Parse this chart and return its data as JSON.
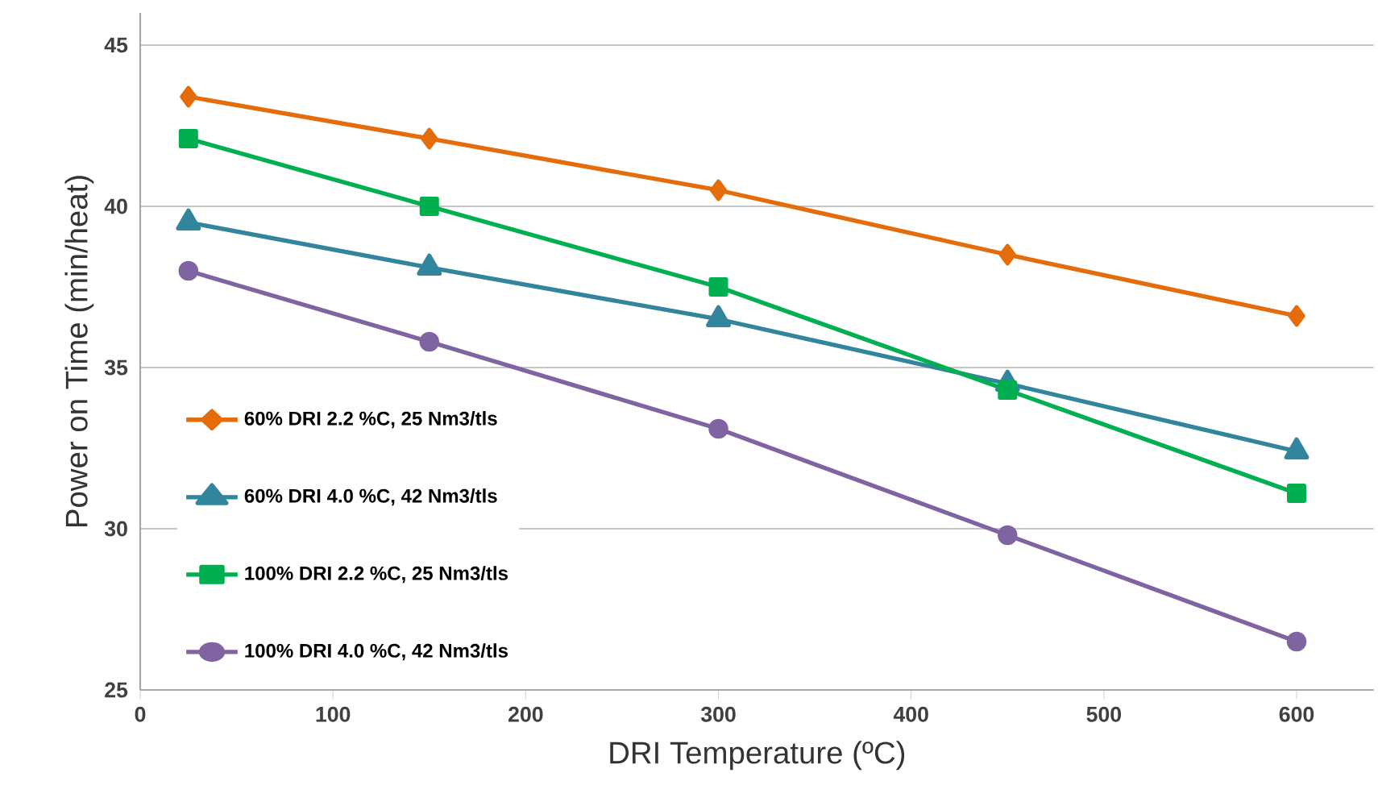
{
  "chart_data": {
    "type": "line",
    "xlabel": "DRI Temperature (ºC)",
    "ylabel": "Power on Time (min/heat)",
    "x": [
      25,
      150,
      300,
      450,
      600
    ],
    "xlim": [
      0,
      640
    ],
    "ylim": [
      25,
      46
    ],
    "xticks": [
      0,
      100,
      200,
      300,
      400,
      500,
      600
    ],
    "yticks": [
      25,
      30,
      35,
      40,
      45
    ],
    "grid": "y",
    "legend": "left",
    "line_style": "solid",
    "series": [
      {
        "name": "60% DRI 2.2 %C, 25 Nm3/tls",
        "color": "#e46c0a",
        "marker": "diamond",
        "values": [
          43.4,
          42.1,
          40.5,
          38.5,
          36.6
        ]
      },
      {
        "name": "60% DRI 4.0 %C, 42 Nm3/tls",
        "color": "#31859c",
        "marker": "triangle",
        "values": [
          39.5,
          38.1,
          36.5,
          34.5,
          32.4
        ]
      },
      {
        "name": "100% DRI 2.2 %C, 25 Nm3/tls",
        "color": "#00b050",
        "marker": "square",
        "values": [
          42.1,
          40.0,
          37.5,
          34.3,
          31.1
        ]
      },
      {
        "name": "100% DRI 4.0 %C, 42 Nm3/tls",
        "color": "#8064a2",
        "marker": "circle",
        "values": [
          38.0,
          35.8,
          33.1,
          29.8,
          26.5
        ]
      }
    ]
  }
}
